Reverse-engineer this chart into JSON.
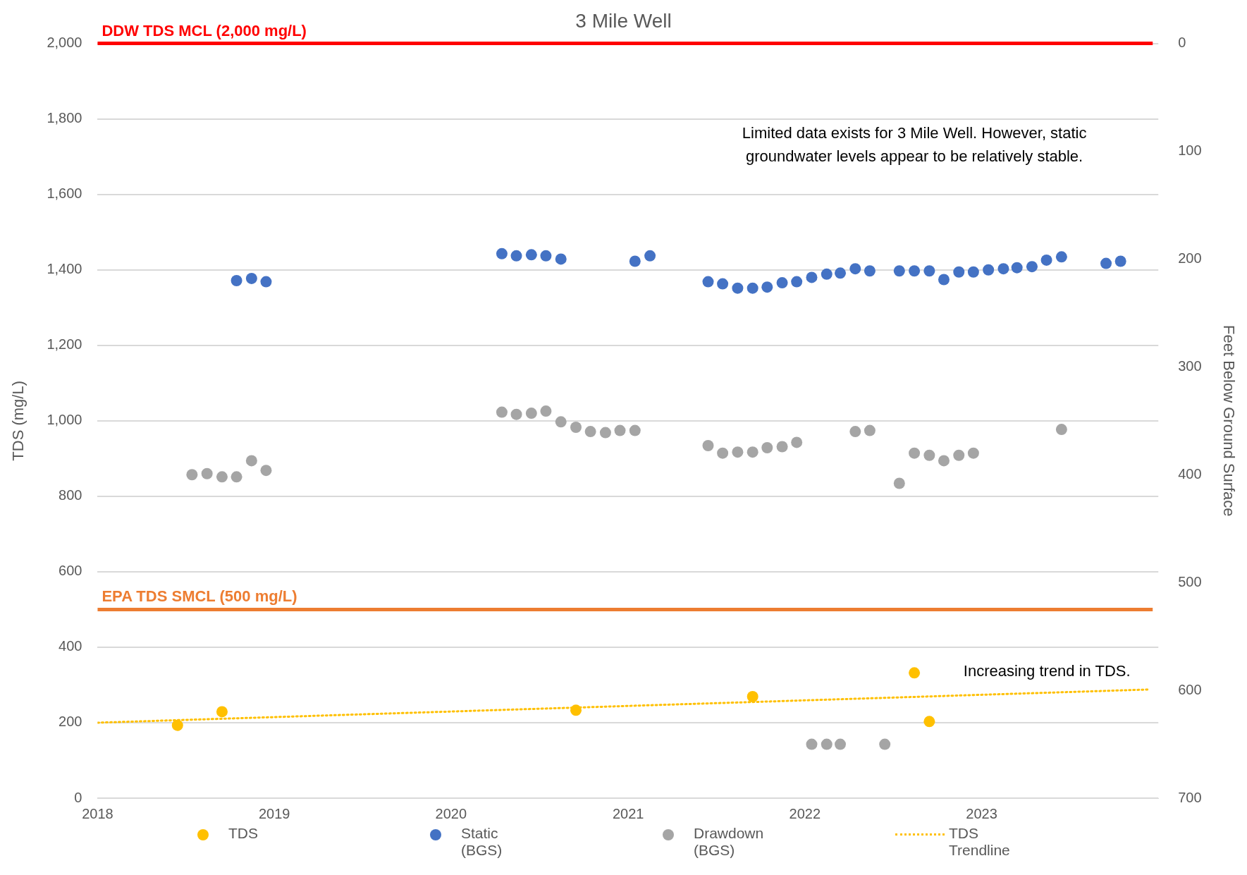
{
  "chart_data": {
    "type": "scatter",
    "title": "3 Mile Well",
    "ylabel": "TDS (mg/L)",
    "y2label": "Feet Below Ground Surface",
    "xlim": [
      "2018-01-01",
      "2024-01-01"
    ],
    "xticks": [
      {
        "value": "2018-01-01",
        "label": "2018"
      },
      {
        "value": "2019-01-01",
        "label": "2019"
      },
      {
        "value": "2020-01-01",
        "label": "2020"
      },
      {
        "value": "2021-01-01",
        "label": "2021"
      },
      {
        "value": "2022-01-01",
        "label": "2022"
      },
      {
        "value": "2023-01-01",
        "label": "2023"
      }
    ],
    "ylim": [
      0,
      2000
    ],
    "yticks": [
      0,
      {
        "value": 200,
        "label": "200"
      },
      {
        "value": 400,
        "label": "400"
      },
      {
        "value": 600,
        "label": "600"
      },
      {
        "value": 800,
        "label": "800"
      },
      {
        "value": 1000,
        "label": "1,000"
      },
      {
        "value": 1200,
        "label": "1,200"
      },
      {
        "value": 1400,
        "label": "1,400"
      },
      {
        "value": 1600,
        "label": "1,600"
      },
      {
        "value": 1800,
        "label": "1,800"
      },
      {
        "value": 2000,
        "label": "2,000"
      }
    ],
    "y2lim": [
      700,
      0
    ],
    "y2ticks": [
      0,
      100,
      200,
      300,
      400,
      500,
      600,
      700
    ],
    "grid": "y",
    "legend": "bottom",
    "marker": "circle",
    "series": [
      {
        "name": "TDS",
        "color": "#ffc000",
        "x": [
          "2018-06-15",
          "2018-09-15",
          "2020-09-15",
          "2021-09-15",
          "2022-08-15",
          "2022-09-15"
        ],
        "values": [
          193,
          229,
          233,
          269,
          332,
          203
        ]
      },
      {
        "name": "Static (BGS)",
        "axis": "y2",
        "color": "#4472c4",
        "x": [
          "2018-10-15",
          "2018-11-15",
          "2018-12-15",
          "2020-04-15",
          "2020-05-15",
          "2020-06-15",
          "2020-07-15",
          "2020-08-15",
          "2021-01-15",
          "2021-02-15",
          "2021-06-15",
          "2021-07-15",
          "2021-08-15",
          "2021-09-15",
          "2021-10-15",
          "2021-11-15",
          "2021-12-15",
          "2022-01-15",
          "2022-02-15",
          "2022-03-15",
          "2022-04-15",
          "2022-05-15",
          "2022-07-15",
          "2022-08-15",
          "2022-09-15",
          "2022-10-15",
          "2022-11-15",
          "2022-12-15",
          "2023-01-15",
          "2023-02-15",
          "2023-03-15",
          "2023-04-15",
          "2023-05-15",
          "2023-06-15",
          "2023-09-15",
          "2023-10-15"
        ],
        "values": [
          220,
          218,
          221,
          195,
          197,
          196,
          197,
          200,
          202,
          197,
          221,
          223,
          227,
          227,
          226,
          222,
          221,
          217,
          214,
          213,
          209,
          211,
          211,
          211,
          211,
          219,
          212,
          212,
          210,
          209,
          208,
          207,
          201,
          198,
          204,
          202
        ]
      },
      {
        "name": "Drawdown (BGS)",
        "axis": "y2",
        "color": "#a5a5a5",
        "x": [
          "2018-07-15",
          "2018-08-15",
          "2018-09-15",
          "2018-10-15",
          "2018-11-15",
          "2018-12-15",
          "2020-04-15",
          "2020-05-15",
          "2020-06-15",
          "2020-07-15",
          "2020-08-15",
          "2020-09-15",
          "2020-10-15",
          "2020-11-15",
          "2020-12-15",
          "2021-01-15",
          "2021-06-15",
          "2021-07-15",
          "2021-08-15",
          "2021-09-15",
          "2021-10-15",
          "2021-11-15",
          "2021-12-15",
          "2022-01-15",
          "2022-02-15",
          "2022-03-15",
          "2022-04-15",
          "2022-05-15",
          "2022-06-15",
          "2022-07-15",
          "2022-08-15",
          "2022-09-15",
          "2022-10-15",
          "2022-11-15",
          "2022-12-15",
          "2023-06-15"
        ],
        "values": [
          400,
          399,
          402,
          402,
          387,
          396,
          342,
          344,
          343,
          341,
          351,
          356,
          360,
          361,
          359,
          359,
          373,
          380,
          379,
          379,
          375,
          374,
          370,
          650,
          650,
          650,
          360,
          359,
          650,
          408,
          380,
          382,
          387,
          382,
          380,
          358
        ]
      },
      {
        "name": "TDS Trendline",
        "type": "line",
        "color": "#ffc000",
        "line_style": "dotted",
        "marker": "none",
        "x": [
          "2018-01-01",
          "2023-12-15"
        ],
        "values": [
          200,
          288
        ]
      }
    ],
    "ref_lines": [
      {
        "axis": "y",
        "value": 2000,
        "label": "DDW TDS MCL (2,000 mg/L)",
        "color": "#ff0000"
      },
      {
        "axis": "y",
        "value": 500,
        "label": "EPA TDS SMCL (500 mg/L)",
        "color": "#ed7d31"
      }
    ],
    "annotations": [
      "Limited data exists for 3 Mile Well. However, static groundwater levels appear to be relatively stable.",
      "Increasing trend in TDS."
    ]
  }
}
